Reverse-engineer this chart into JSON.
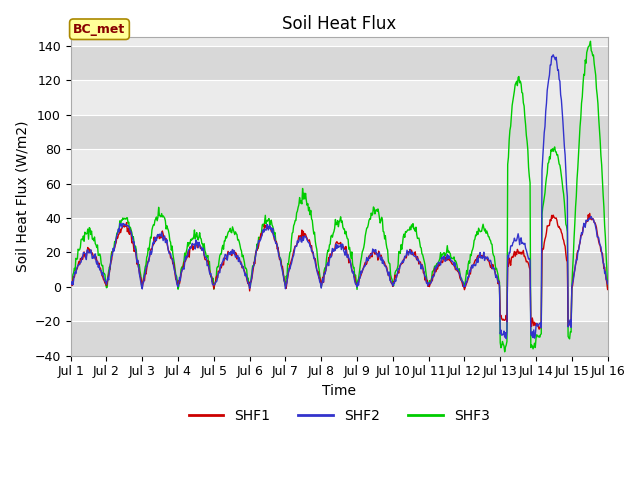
{
  "title": "Soil Heat Flux",
  "ylabel": "Soil Heat Flux (W/m2)",
  "xlabel": "Time",
  "xlim": [
    0,
    15
  ],
  "ylim": [
    -40,
    145
  ],
  "yticks": [
    -40,
    -20,
    0,
    20,
    40,
    60,
    80,
    100,
    120,
    140
  ],
  "xtick_labels": [
    "Jul 1",
    "Jul 2",
    "Jul 3",
    "Jul 4",
    "Jul 5",
    "Jul 6",
    "Jul 7",
    "Jul 8",
    "Jul 9",
    "Jul 10",
    "Jul 11",
    "Jul 12",
    "Jul 13",
    "Jul 14",
    "Jul 15",
    "Jul 16"
  ],
  "legend_labels": [
    "SHF1",
    "SHF2",
    "SHF3"
  ],
  "legend_colors": [
    "#cc0000",
    "#3333cc",
    "#00cc00"
  ],
  "bc_met_label": "BC_met",
  "bc_met_bg": "#ffff99",
  "bc_met_border": "#aa8800",
  "bc_met_text": "#880000",
  "background_color": "#ffffff",
  "plot_bg_dark": "#d8d8d8",
  "plot_bg_light": "#ebebeb",
  "title_fontsize": 12,
  "label_fontsize": 10,
  "tick_fontsize": 9
}
